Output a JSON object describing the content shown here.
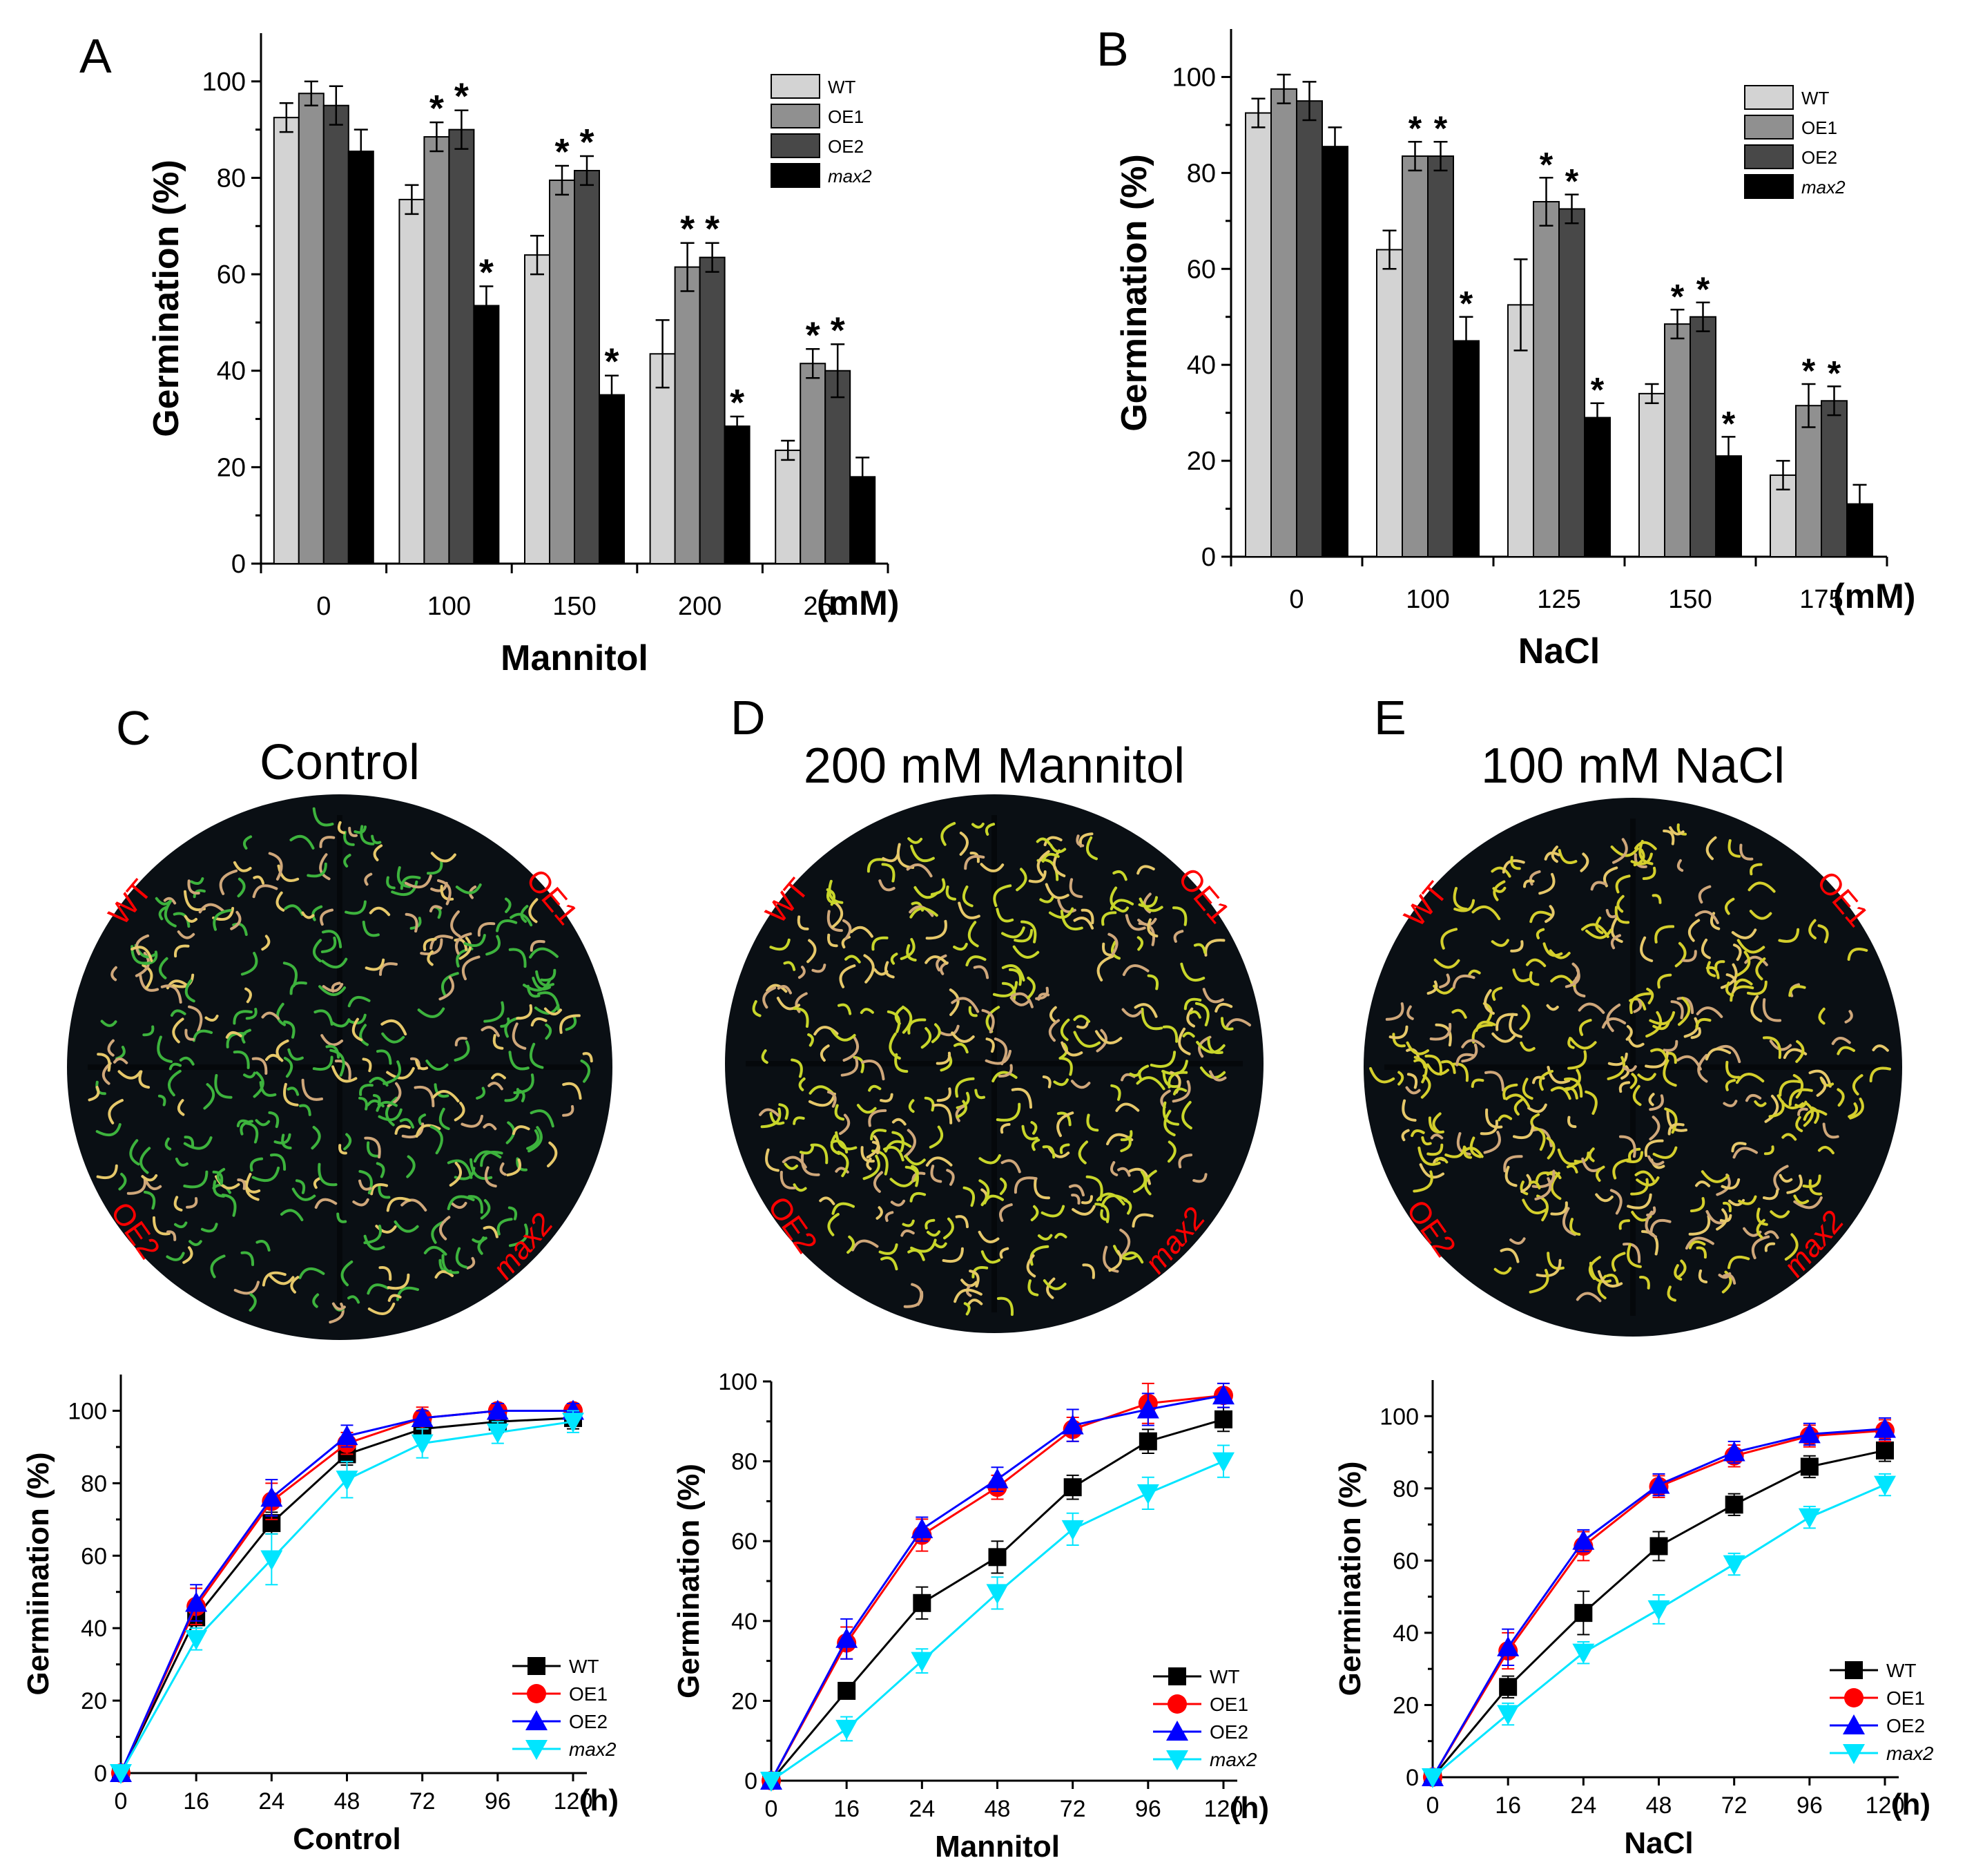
{
  "figure": {
    "panel_letters": [
      "A",
      "B",
      "C",
      "D",
      "E"
    ],
    "axis_unit_mM": "(mM)",
    "axis_unit_h": "(h)",
    "colors": {
      "WT_bar": "#d3d3d3",
      "OE1_bar": "#909090",
      "OE2_bar": "#484848",
      "max2_bar": "#000000",
      "WT_line": "#000000",
      "OE1_line": "#ff0000",
      "OE2_line": "#0000ff",
      "max2_line": "#00e5ff",
      "plate_label": "#ff0000"
    }
  },
  "plates": [
    {
      "panel": "C",
      "title": "Control",
      "labels": [
        "WT",
        "OE1",
        "OE2",
        "max2"
      ],
      "seedling_color": "#3db33d"
    },
    {
      "panel": "D",
      "title": "200 mM Mannitol",
      "labels": [
        "WT",
        "OE1",
        "OE2",
        "max2"
      ],
      "seedling_color": "#c8d62a"
    },
    {
      "panel": "E",
      "title": "100 mM NaCl",
      "labels": [
        "WT",
        "OE1",
        "OE2",
        "max2"
      ],
      "seedling_color": "#d4cf2c"
    }
  ],
  "chart_data": [
    {
      "panel": "A",
      "type": "bar",
      "title": "",
      "xlabel": "Mannitol",
      "xunit": "(mM)",
      "ylabel": "Germination (%)",
      "ylim": [
        0,
        110
      ],
      "yticks": [
        0,
        20,
        40,
        60,
        80,
        100
      ],
      "categories": [
        "0",
        "100",
        "150",
        "200",
        "250"
      ],
      "legend": [
        "WT",
        "OE1",
        "OE2",
        "max2"
      ],
      "legend_position": "top-right",
      "series": [
        {
          "name": "WT",
          "values": [
            92.5,
            75.5,
            64,
            43.5,
            23.5
          ],
          "errors": [
            3,
            3,
            4,
            7,
            2
          ]
        },
        {
          "name": "OE1",
          "values": [
            97.5,
            88.5,
            79.5,
            61.5,
            41.5
          ],
          "errors": [
            2.5,
            3,
            3,
            5,
            3
          ]
        },
        {
          "name": "OE2",
          "values": [
            95,
            90,
            81.5,
            63.5,
            40
          ],
          "errors": [
            4,
            4,
            3,
            3,
            5.5
          ]
        },
        {
          "name": "max2",
          "values": [
            85.5,
            53.5,
            35,
            28.5,
            18
          ],
          "errors": [
            4.5,
            4,
            4,
            2,
            4
          ]
        }
      ],
      "significance": [
        [
          false,
          false,
          false,
          false
        ],
        [
          false,
          true,
          true,
          true
        ],
        [
          false,
          true,
          true,
          true
        ],
        [
          false,
          true,
          true,
          true
        ],
        [
          false,
          true,
          true,
          false
        ]
      ]
    },
    {
      "panel": "B",
      "type": "bar",
      "title": "",
      "xlabel": "NaCl",
      "xunit": "(mM)",
      "ylabel": "Germination (%)",
      "ylim": [
        0,
        110
      ],
      "yticks": [
        0,
        20,
        40,
        60,
        80,
        100
      ],
      "categories": [
        "0",
        "100",
        "125",
        "150",
        "175"
      ],
      "legend": [
        "WT",
        "OE1",
        "OE2",
        "max2"
      ],
      "legend_position": "top-right",
      "series": [
        {
          "name": "WT",
          "values": [
            92.5,
            64,
            52.5,
            34,
            17
          ],
          "errors": [
            3,
            4,
            9.5,
            2,
            3
          ]
        },
        {
          "name": "OE1",
          "values": [
            97.5,
            83.5,
            74,
            48.5,
            31.5
          ],
          "errors": [
            3,
            3,
            5,
            3,
            4.5
          ]
        },
        {
          "name": "OE2",
          "values": [
            95,
            83.5,
            72.5,
            50,
            32.5
          ],
          "errors": [
            4,
            3,
            3,
            3,
            3
          ]
        },
        {
          "name": "max2",
          "values": [
            85.5,
            45,
            29,
            21,
            11
          ],
          "errors": [
            4,
            5,
            3,
            4,
            4
          ]
        }
      ],
      "significance": [
        [
          false,
          false,
          false,
          false
        ],
        [
          false,
          true,
          true,
          true
        ],
        [
          false,
          true,
          true,
          true
        ],
        [
          false,
          true,
          true,
          true
        ],
        [
          false,
          true,
          true,
          false
        ]
      ]
    },
    {
      "panel": "C",
      "type": "line",
      "xlabel": "Control",
      "xunit": "(h)",
      "ylabel": "Germiination (%)",
      "ylim": [
        0,
        110
      ],
      "yticks": [
        0,
        20,
        40,
        60,
        80,
        100
      ],
      "x": [
        0,
        16,
        24,
        48,
        72,
        96,
        120
      ],
      "legend_position": "bottom-right",
      "series": [
        {
          "name": "WT",
          "marker": "square",
          "values": [
            0,
            43,
            69,
            88,
            95,
            97,
            98
          ],
          "errors": [
            0,
            3,
            3,
            3,
            3,
            3,
            3
          ]
        },
        {
          "name": "OE1",
          "marker": "circle",
          "values": [
            0,
            46,
            75,
            91,
            98,
            100,
            100
          ],
          "errors": [
            0,
            5,
            5,
            3,
            3,
            2,
            2
          ]
        },
        {
          "name": "OE2",
          "marker": "triangle-up",
          "values": [
            0,
            47,
            76,
            93,
            98,
            100,
            100
          ],
          "errors": [
            0,
            5,
            5,
            3,
            2,
            2,
            2
          ]
        },
        {
          "name": "max2",
          "marker": "triangle-down",
          "values": [
            0,
            37,
            59,
            81,
            91,
            94,
            97
          ],
          "errors": [
            0,
            3,
            7,
            5,
            4,
            3,
            3
          ]
        }
      ]
    },
    {
      "panel": "D",
      "type": "line",
      "xlabel": "Mannitol",
      "xunit": "(h)",
      "ylabel": "Germination (%)",
      "ylim": [
        0,
        100
      ],
      "yticks": [
        0,
        20,
        40,
        60,
        80,
        100
      ],
      "x": [
        0,
        16,
        24,
        48,
        72,
        96,
        120
      ],
      "legend_position": "bottom-right",
      "series": [
        {
          "name": "WT",
          "marker": "square",
          "values": [
            0,
            22.5,
            44.5,
            56,
            73.5,
            85,
            90.5
          ],
          "errors": [
            0,
            2,
            4,
            4,
            3,
            3,
            3
          ]
        },
        {
          "name": "OE1",
          "marker": "circle",
          "values": [
            0,
            34.5,
            61.5,
            73.5,
            88,
            94.5,
            96.5
          ],
          "errors": [
            0,
            4,
            4,
            3,
            3,
            5,
            3
          ]
        },
        {
          "name": "OE2",
          "marker": "triangle-up",
          "values": [
            0,
            35.5,
            63,
            75.5,
            89,
            93,
            96.5
          ],
          "errors": [
            0,
            5,
            3,
            3,
            4,
            4,
            3
          ]
        },
        {
          "name": "max2",
          "marker": "triangle-down",
          "values": [
            0,
            13,
            30,
            47,
            63,
            72,
            80
          ],
          "errors": [
            0,
            3,
            3,
            4,
            4,
            4,
            4
          ]
        }
      ]
    },
    {
      "panel": "E",
      "type": "line",
      "xlabel": "NaCl",
      "xunit": "(h)",
      "ylabel": "Germination (%)",
      "ylim": [
        0,
        110
      ],
      "yticks": [
        0,
        20,
        40,
        60,
        80,
        100
      ],
      "x": [
        0,
        16,
        24,
        48,
        72,
        96,
        120
      ],
      "legend_position": "bottom-right",
      "series": [
        {
          "name": "WT",
          "marker": "square",
          "values": [
            0,
            25,
            45.5,
            64,
            75.5,
            86,
            90.5
          ],
          "errors": [
            0,
            3,
            6,
            4,
            3,
            3,
            3
          ]
        },
        {
          "name": "OE1",
          "marker": "circle",
          "values": [
            0,
            35,
            64,
            80.5,
            89,
            94.5,
            96
          ],
          "errors": [
            0,
            5,
            4,
            3,
            3,
            3,
            3
          ]
        },
        {
          "name": "OE2",
          "marker": "triangle-up",
          "values": [
            0,
            36,
            65.5,
            81,
            90,
            95,
            96.5
          ],
          "errors": [
            0,
            5,
            3,
            3,
            3,
            3,
            3
          ]
        },
        {
          "name": "max2",
          "marker": "triangle-down",
          "values": [
            0,
            17.5,
            34.5,
            46.5,
            59,
            72,
            81
          ],
          "errors": [
            0,
            3,
            3,
            4,
            3,
            3,
            3
          ]
        }
      ]
    }
  ]
}
